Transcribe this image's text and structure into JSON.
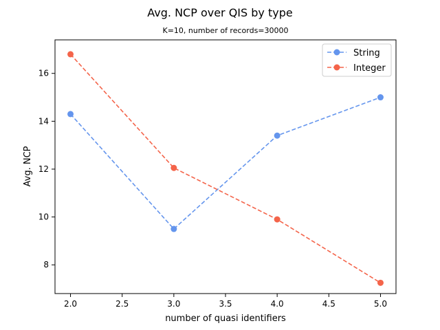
{
  "chart_data": {
    "type": "line",
    "title": "Avg. NCP over QIS by type",
    "subtitle": "K=10, number of records=30000",
    "xlabel": "number of quasi identifiers",
    "ylabel": "Avg. NCP",
    "x": [
      2.0,
      3.0,
      4.0,
      5.0
    ],
    "xlim": [
      1.85,
      5.15
    ],
    "ylim": [
      6.8,
      17.4
    ],
    "xticks": [
      2.0,
      2.5,
      3.0,
      3.5,
      4.0,
      4.5,
      5.0
    ],
    "xtick_labels": [
      "2.0",
      "2.5",
      "3.0",
      "3.5",
      "4.0",
      "4.5",
      "5.0"
    ],
    "yticks": [
      8,
      10,
      12,
      14,
      16
    ],
    "ytick_labels": [
      "8",
      "10",
      "12",
      "14",
      "16"
    ],
    "grid": false,
    "legend_position": "top-right",
    "series": [
      {
        "name": "String",
        "color": "#6495ed",
        "values": [
          14.3,
          9.5,
          13.4,
          15.0
        ]
      },
      {
        "name": "Integer",
        "color": "#f4644a",
        "values": [
          16.8,
          12.05,
          9.9,
          7.25
        ]
      }
    ]
  }
}
